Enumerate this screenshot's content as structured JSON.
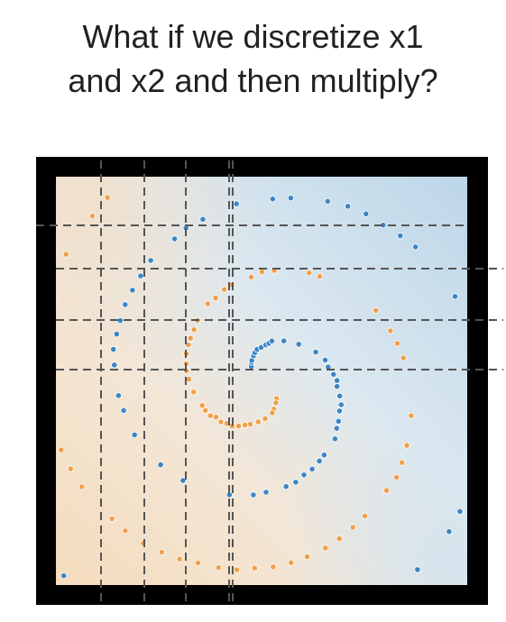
{
  "title": {
    "line1": "What if we discretize x1",
    "line2": "and x2 and then multiply?"
  },
  "colors": {
    "frame": "#000000",
    "orange_class": "#f0a04b",
    "blue_class": "#3b86c6",
    "background_warm": "#f7e0c5",
    "background_cool": "#c6dceb",
    "grid_line": "#555555"
  },
  "discretization": {
    "x1_bins": 5,
    "x2_bins": 5
  },
  "legend": []
}
